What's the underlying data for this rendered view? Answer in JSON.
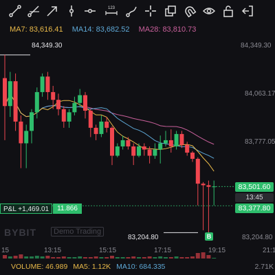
{
  "toolbar": {
    "tools": [
      "trend-line-icon",
      "ray-icon",
      "arrow-icon",
      "vertical-line-icon",
      "horizontal-line-icon",
      "measure-icon",
      "brush-icon",
      "crosshair-icon",
      "layers-icon",
      "magnet-icon",
      "eye-icon",
      "lock-icon",
      "exit-icon"
    ],
    "measure_badge": "123"
  },
  "ma": {
    "ma7": "MA7: 83,616.41",
    "ma14": "MA14: 83,682.52",
    "ma28": "MA28: 83,810.73"
  },
  "colors": {
    "up": "#2ebd6c",
    "down": "#f0464f",
    "ma7": "#e9b949",
    "ma14": "#5ea8d6",
    "ma28": "#c9609b",
    "background": "#101014"
  },
  "price_axis": [
    "84,349.30",
    "84,063.17",
    "83,777.05",
    "83,204.80"
  ],
  "time_axis": [
    "15",
    "13:15",
    "15:15",
    "17:15",
    "19:15",
    "21:1"
  ],
  "labels": {
    "high": "84,349.30",
    "low": "83,204.80",
    "current_price": "83,501.60",
    "countdown": "13:45",
    "position_price": "83,377.80",
    "pnl": "P&L +1,469.01",
    "position_qty": "11.866",
    "buy_marker": "B",
    "watermark_brand": "BYBIT",
    "watermark_tag": "Demo Trading",
    "volume_axis_max": "2.71K"
  },
  "volume": {
    "volume": "VOLUME: 46.989",
    "ma5": "MA5: 1.12K",
    "ma10": "MA10: 684.335"
  },
  "chart_data": {
    "type": "candlestick",
    "y_range": [
      83162,
      84402
    ],
    "candles": [
      {
        "o": 84200,
        "c": 84020,
        "h": 84350,
        "l": 83800
      },
      {
        "o": 84020,
        "c": 84180,
        "h": 84240,
        "l": 83950
      },
      {
        "o": 84180,
        "c": 83920,
        "h": 84230,
        "l": 83860
      },
      {
        "o": 83920,
        "c": 83780,
        "h": 83960,
        "l": 83620
      },
      {
        "o": 83780,
        "c": 83860,
        "h": 83900,
        "l": 83620
      },
      {
        "o": 83860,
        "c": 83980,
        "h": 84000,
        "l": 83780
      },
      {
        "o": 83980,
        "c": 84110,
        "h": 84140,
        "l": 83940
      },
      {
        "o": 84110,
        "c": 84210,
        "h": 84230,
        "l": 84080
      },
      {
        "o": 84210,
        "c": 84110,
        "h": 84240,
        "l": 84060
      },
      {
        "o": 84110,
        "c": 84060,
        "h": 84150,
        "l": 84000
      },
      {
        "o": 84060,
        "c": 84000,
        "h": 84100,
        "l": 83960
      },
      {
        "o": 84000,
        "c": 83920,
        "h": 84020,
        "l": 83880
      },
      {
        "o": 83920,
        "c": 83980,
        "h": 84000,
        "l": 83880
      },
      {
        "o": 83980,
        "c": 84040,
        "h": 84080,
        "l": 83960
      },
      {
        "o": 84040,
        "c": 84090,
        "h": 84130,
        "l": 84010
      },
      {
        "o": 84090,
        "c": 83990,
        "h": 84110,
        "l": 83940
      },
      {
        "o": 83990,
        "c": 83880,
        "h": 84000,
        "l": 83820
      },
      {
        "o": 83880,
        "c": 83840,
        "h": 83900,
        "l": 83800
      },
      {
        "o": 83840,
        "c": 83920,
        "h": 83960,
        "l": 83820
      },
      {
        "o": 83920,
        "c": 83880,
        "h": 83950,
        "l": 83850
      },
      {
        "o": 83880,
        "c": 83700,
        "h": 83890,
        "l": 83640
      },
      {
        "o": 83700,
        "c": 83760,
        "h": 83780,
        "l": 83690
      },
      {
        "o": 83760,
        "c": 83800,
        "h": 83830,
        "l": 83740
      },
      {
        "o": 83800,
        "c": 83760,
        "h": 83820,
        "l": 83740
      },
      {
        "o": 83760,
        "c": 83700,
        "h": 83780,
        "l": 83640
      },
      {
        "o": 83700,
        "c": 83760,
        "h": 83780,
        "l": 83690
      },
      {
        "o": 83760,
        "c": 83740,
        "h": 83780,
        "l": 83700
      },
      {
        "o": 83740,
        "c": 83700,
        "h": 83760,
        "l": 83650
      },
      {
        "o": 83700,
        "c": 83740,
        "h": 83780,
        "l": 83680
      },
      {
        "o": 83740,
        "c": 83780,
        "h": 83830,
        "l": 83650
      },
      {
        "o": 83780,
        "c": 83800,
        "h": 83860,
        "l": 83760
      },
      {
        "o": 83800,
        "c": 83760,
        "h": 83870,
        "l": 83720
      },
      {
        "o": 83760,
        "c": 83840,
        "h": 83860,
        "l": 83740
      },
      {
        "o": 83840,
        "c": 83770,
        "h": 83860,
        "l": 83750
      },
      {
        "o": 83770,
        "c": 83720,
        "h": 83790,
        "l": 83700
      },
      {
        "o": 83720,
        "c": 83680,
        "h": 83730,
        "l": 83660
      },
      {
        "o": 83680,
        "c": 83520,
        "h": 83690,
        "l": 83380
      },
      {
        "o": 83520,
        "c": 83510,
        "h": 83530,
        "l": 83220
      },
      {
        "o": 83510,
        "c": 83500,
        "h": 83540,
        "l": 83200
      },
      {
        "o": 83500,
        "c": 83502,
        "h": 83540,
        "l": 83380
      }
    ],
    "volume_bars": [
      0.5,
      0.3,
      0.4,
      0.6,
      0.3,
      0.3,
      0.4,
      0.3,
      0.4,
      0.2,
      0.2,
      0.3,
      0.2,
      0.2,
      0.3,
      0.2,
      0.2,
      0.3,
      0.2,
      0.2,
      0.4,
      0.2,
      0.2,
      0.2,
      0.3,
      0.2,
      0.2,
      0.3,
      0.2,
      0.3,
      0.2,
      0.2,
      0.3,
      0.2,
      0.2,
      0.3,
      0.8,
      0.9,
      0.5,
      0.1
    ]
  }
}
